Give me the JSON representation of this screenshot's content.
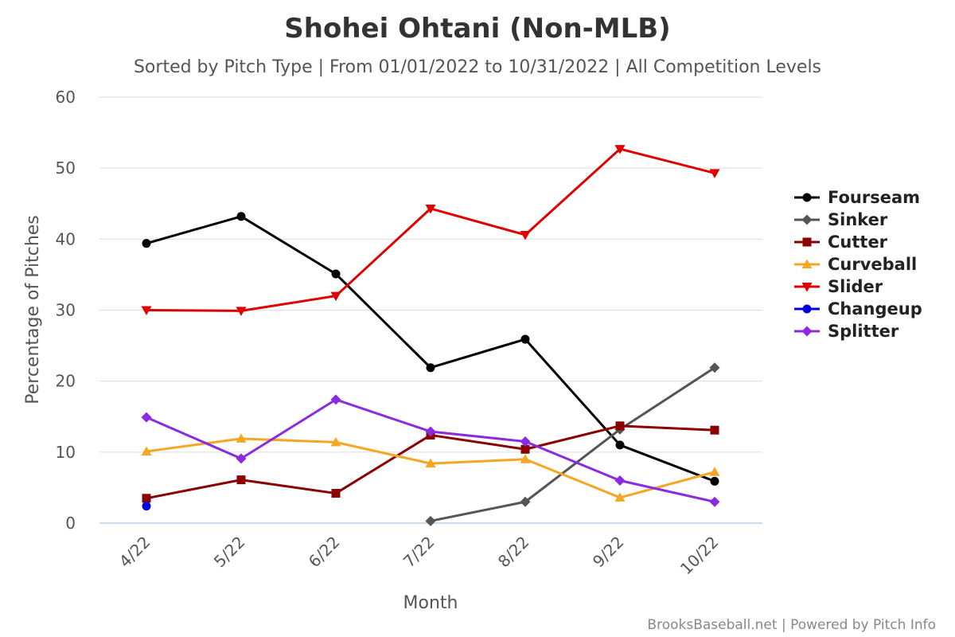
{
  "chart_data": {
    "type": "line",
    "title": "Shohei Ohtani (Non-MLB)",
    "subtitle": "Sorted by Pitch Type | From 01/01/2022 to 10/31/2022 | All Competition Levels",
    "xlabel": "Month",
    "ylabel": "Percentage of Pitches",
    "categories": [
      "4/22",
      "5/22",
      "6/22",
      "7/22",
      "8/22",
      "9/22",
      "10/22"
    ],
    "ylim": [
      0,
      60
    ],
    "yticks": [
      0,
      10,
      20,
      30,
      40,
      50,
      60
    ],
    "grid": true,
    "legend_position": "right",
    "series": [
      {
        "name": "Fourseam",
        "color": "#000000",
        "marker": "circle",
        "values": [
          39.4,
          43.2,
          35.1,
          21.9,
          25.9,
          11.0,
          5.9
        ]
      },
      {
        "name": "Sinker",
        "color": "#555555",
        "marker": "diamond",
        "values": [
          null,
          null,
          null,
          0.3,
          3.0,
          13.2,
          21.9
        ]
      },
      {
        "name": "Cutter",
        "color": "#8b0000",
        "marker": "square",
        "values": [
          3.5,
          6.1,
          4.2,
          12.4,
          10.4,
          13.7,
          13.1
        ]
      },
      {
        "name": "Curveball",
        "color": "#f5a623",
        "marker": "triangle-up",
        "values": [
          10.1,
          11.9,
          11.4,
          8.4,
          9.0,
          3.6,
          7.2
        ]
      },
      {
        "name": "Slider",
        "color": "#e00000",
        "marker": "triangle-down",
        "values": [
          30.0,
          29.9,
          32.0,
          44.3,
          40.6,
          52.7,
          49.3
        ]
      },
      {
        "name": "Changeup",
        "color": "#0000dd",
        "marker": "circle",
        "values": [
          2.4,
          null,
          null,
          null,
          null,
          null,
          null
        ]
      },
      {
        "name": "Splitter",
        "color": "#8a2be2",
        "marker": "diamond",
        "values": [
          14.9,
          9.1,
          17.4,
          12.9,
          11.5,
          6.0,
          3.0
        ]
      }
    ]
  },
  "credit": "BrooksBaseball.net | Powered by Pitch Info"
}
